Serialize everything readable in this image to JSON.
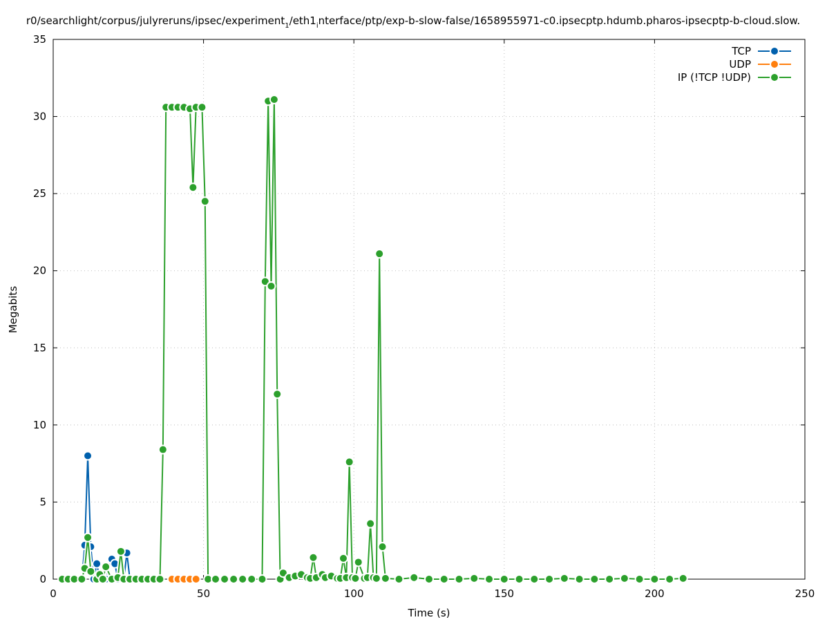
{
  "chart_data": {
    "type": "line",
    "title": "r0/searchlight/corpus/julyreruns/ipsec/experiment_1/eth1_interface/ptp/exp-b-slow-false/1658955971-c0.ipsecptp.hdumb.pharos-ipsecptp-b-cloud.slow.",
    "title_parts": [
      "r0/searchlight/corpus/julyreruns/ipsec/experiment",
      "1",
      "/eth1",
      "i",
      "nterface/ptp/exp-b-slow-false/1658955971-c0.ipsecptp.hdumb.pharos-ipsecptp-b-cloud.slow."
    ],
    "xlabel": "Time (s)",
    "ylabel": "Megabits",
    "xlim": [
      0,
      250
    ],
    "ylim": [
      0,
      35
    ],
    "xticks": [
      0,
      50,
      100,
      150,
      200,
      250
    ],
    "yticks": [
      0,
      5,
      10,
      15,
      20,
      25,
      30,
      35
    ],
    "grid": true,
    "legend_position": "top-right",
    "series": [
      {
        "name": "TCP",
        "color": "#0060ad",
        "x": [
          9.5,
          10.5,
          11.5,
          12.5,
          13.5,
          14.5,
          15.5,
          17.5,
          19.5,
          20.5,
          21.5,
          23.5,
          24.5,
          25.5
        ],
        "y": [
          0,
          2.2,
          8.0,
          2.1,
          0,
          1.0,
          0,
          0,
          1.3,
          1.0,
          0,
          0,
          1.7,
          0
        ]
      },
      {
        "name": "UDP",
        "color": "#ff7f0e",
        "x": [
          39.5,
          41.5,
          43.5,
          45.5,
          47.5
        ],
        "y": [
          0,
          0,
          0,
          0,
          0
        ]
      },
      {
        "name": "IP (!TCP  !UDP)",
        "color": "#2ca02c",
        "x": [
          3,
          5,
          7,
          9.5,
          10.5,
          11.5,
          12.5,
          14.5,
          15.5,
          16.5,
          17.5,
          19.5,
          21.5,
          22.5,
          23.5,
          25.5,
          27.5,
          29.5,
          31.5,
          33.5,
          35.5,
          36.5,
          37.5,
          39.5,
          41.5,
          43.5,
          45.5,
          46.5,
          47.5,
          49.5,
          50.5,
          51.5,
          54,
          57,
          60,
          63,
          66,
          69.5,
          70.5,
          71.5,
          72.5,
          73.5,
          74.5,
          75.5,
          76.5,
          78.5,
          80.5,
          82.5,
          84.5,
          85.5,
          86.5,
          87.5,
          89.5,
          90.5,
          92.5,
          94.5,
          95.5,
          96.5,
          97.5,
          98.5,
          99.5,
          100.5,
          101.5,
          103.5,
          104.5,
          105.5,
          106.5,
          107.5,
          108.5,
          109.5,
          110.5,
          115,
          120,
          125,
          130,
          135,
          140,
          145,
          150,
          155,
          160,
          165,
          170,
          175,
          180,
          185,
          190,
          195,
          200,
          205,
          209.5
        ],
        "y": [
          0,
          0,
          0,
          0,
          0.7,
          2.7,
          0.5,
          0,
          0.3,
          0,
          0.8,
          0,
          0.1,
          1.8,
          0,
          0,
          0,
          0,
          0,
          0,
          0,
          8.4,
          30.6,
          30.6,
          30.6,
          30.6,
          30.5,
          25.4,
          30.6,
          30.6,
          24.5,
          0,
          0,
          0,
          0,
          0,
          0,
          0,
          19.3,
          31.0,
          19.0,
          31.1,
          12.0,
          0,
          0.4,
          0.1,
          0.2,
          0.3,
          0.1,
          0.05,
          1.4,
          0.1,
          0.3,
          0.1,
          0.2,
          0.05,
          0.05,
          1.35,
          0.1,
          7.6,
          0.1,
          0.05,
          1.1,
          0.05,
          0.1,
          3.6,
          0.1,
          0.05,
          21.1,
          2.1,
          0.05,
          0,
          0.1,
          0,
          0,
          0,
          0.05,
          0,
          0,
          0,
          0,
          0,
          0.05,
          0,
          0,
          0,
          0.05,
          0,
          0,
          0,
          0.05
        ]
      }
    ]
  }
}
